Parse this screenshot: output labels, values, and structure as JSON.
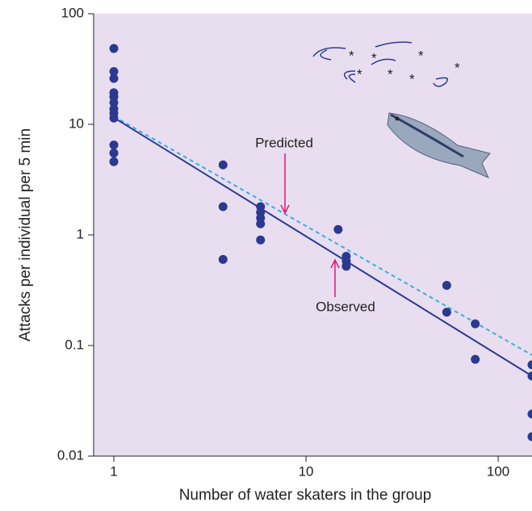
{
  "chart_data": {
    "type": "scatter",
    "x_label": "Number of water skaters in the group",
    "y_label": "Attacks per individual per 5 min",
    "log_x": true,
    "log_y": true,
    "xlim": [
      0.785,
      150
    ],
    "ylim": [
      0.01,
      100
    ],
    "xticks": [
      1,
      10,
      100
    ],
    "yticks": [
      100,
      10,
      1,
      0.1,
      0.01
    ],
    "color": "#2b3990",
    "background": "#e8def0",
    "x": [
      1,
      1,
      1,
      1,
      1,
      1,
      1,
      1,
      1,
      1,
      1,
      1,
      3.7,
      3.7,
      3.7,
      5.8,
      5.8,
      5.8,
      5.8,
      5.8,
      14.7,
      16.2,
      16.2,
      16.2,
      54,
      54,
      76,
      76,
      150,
      150,
      150,
      150
    ],
    "values": [
      48.5,
      30,
      26,
      19.3,
      17.7,
      15.7,
      13.8,
      12.6,
      11.4,
      6.5,
      5.5,
      4.6,
      4.3,
      1.8,
      0.6,
      1.8,
      1.6,
      1.42,
      1.26,
      0.9,
      1.12,
      0.64,
      0.58,
      0.52,
      0.35,
      0.2,
      0.157,
      0.075,
      0.067,
      0.053,
      0.024,
      0.015
    ],
    "lines": [
      {
        "name": "Predicted",
        "color": "#3aaede",
        "dashed": true,
        "x": [
          1,
          150
        ],
        "values": [
          11.8,
          0.082
        ]
      },
      {
        "name": "Observed",
        "color": "#2b3990",
        "dashed": false,
        "x": [
          1,
          150
        ],
        "values": [
          11.5,
          0.053
        ]
      }
    ]
  }
}
